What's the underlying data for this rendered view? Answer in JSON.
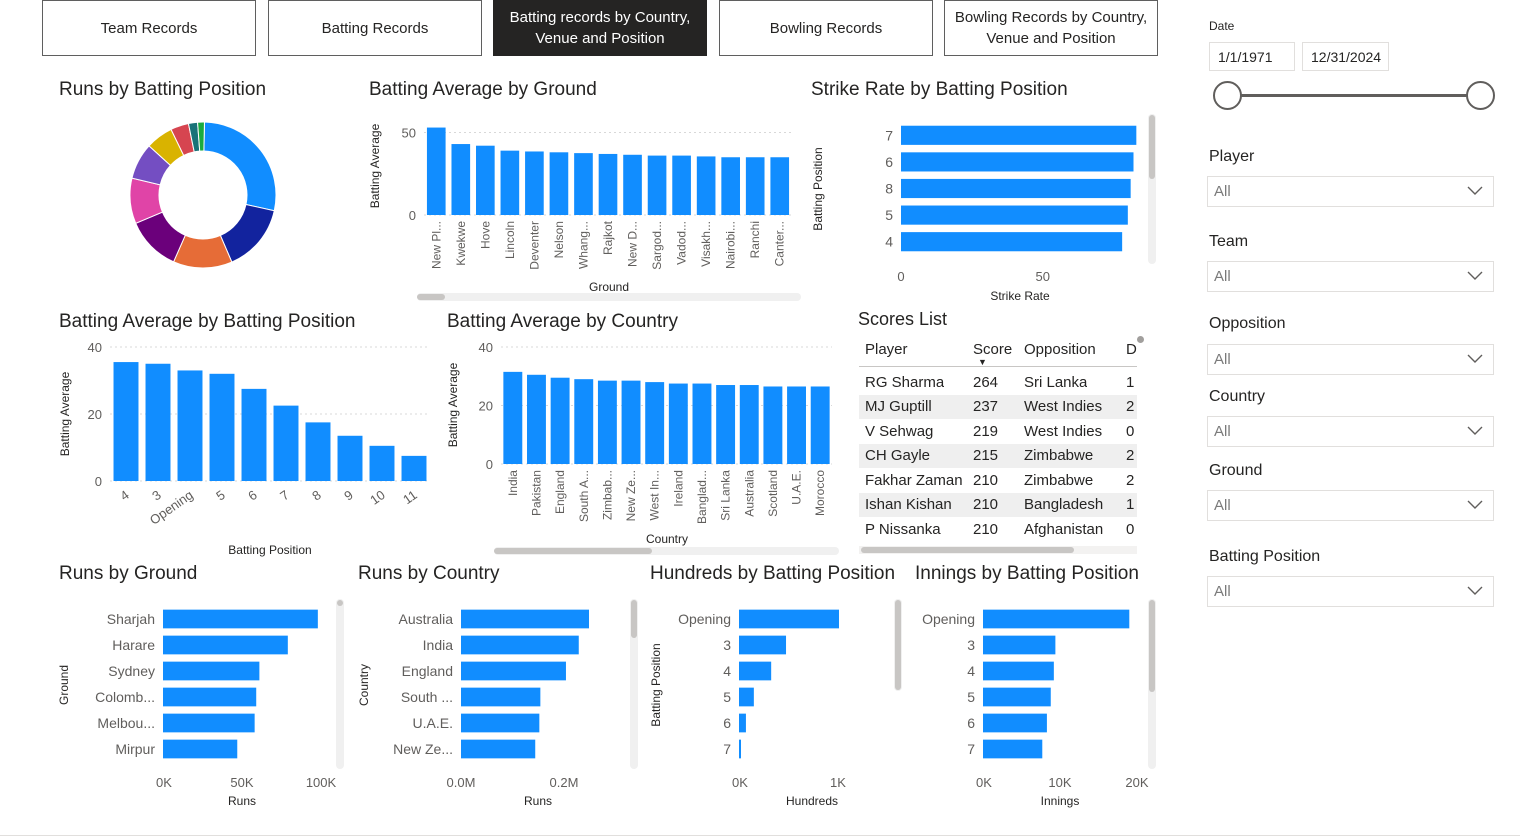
{
  "nav": [
    {
      "label": "Team Records",
      "active": false
    },
    {
      "label": "Batting Records",
      "active": false
    },
    {
      "label": "Batting records by Country, Venue and Position",
      "active": true
    },
    {
      "label": "Bowling Records",
      "active": false
    },
    {
      "label": "Bowling Records by Country, Venue and Position",
      "active": false
    }
  ],
  "filters": {
    "date_label": "Date",
    "date_start": "1/1/1971",
    "date_end": "12/31/2024",
    "slicers": [
      {
        "label": "Player",
        "value": "All"
      },
      {
        "label": "Team",
        "value": "All"
      },
      {
        "label": "Opposition",
        "value": "All"
      },
      {
        "label": "Country",
        "value": "All"
      },
      {
        "label": "Ground",
        "value": "All"
      },
      {
        "label": "Batting Position",
        "value": "All"
      }
    ]
  },
  "scores_list": {
    "title": "Scores List",
    "headers": [
      "Player",
      "Score",
      "Opposition",
      "D"
    ],
    "rows": [
      [
        "RG Sharma",
        "264",
        "Sri Lanka",
        "1"
      ],
      [
        "MJ Guptill",
        "237",
        "West Indies",
        "2"
      ],
      [
        "V Sehwag",
        "219",
        "West Indies",
        "0"
      ],
      [
        "CH Gayle",
        "215",
        "Zimbabwe",
        "2"
      ],
      [
        "Fakhar Zaman",
        "210",
        "Zimbabwe",
        "2"
      ],
      [
        "Ishan Kishan",
        "210",
        "Bangladesh",
        "1"
      ],
      [
        "P Nissanka",
        "210",
        "Afghanistan",
        "0"
      ]
    ]
  },
  "chart_data": [
    {
      "id": "runs-by-position",
      "type": "pie",
      "title": "Runs by Batting Position",
      "slices": [
        {
          "value": 28,
          "color": "#118DFF"
        },
        {
          "value": 15,
          "color": "#12239E"
        },
        {
          "value": 13,
          "color": "#E66C37"
        },
        {
          "value": 12,
          "color": "#6B007B"
        },
        {
          "value": 10,
          "color": "#E044A7"
        },
        {
          "value": 8,
          "color": "#744EC2"
        },
        {
          "value": 6,
          "color": "#D9B300"
        },
        {
          "value": 4,
          "color": "#D64550"
        },
        {
          "value": 2,
          "color": "#197278"
        },
        {
          "value": 1.5,
          "color": "#1AAB40"
        }
      ]
    },
    {
      "id": "avg-by-ground",
      "type": "bar",
      "title": "Batting Average by Ground",
      "xlabel": "Ground",
      "ylabel": "Batting Average",
      "ylim": [
        0,
        60
      ],
      "yticks": [
        0,
        50
      ],
      "categories": [
        "New Pl...",
        "Kwekwe",
        "Hove",
        "Lincoln",
        "Deventer",
        "Nelson",
        "Whang...",
        "Rajkot",
        "New D...",
        "Sargod...",
        "Vadod...",
        "Visakh...",
        "Nairobi...",
        "Ranchi",
        "Canter..."
      ],
      "values": [
        53,
        43,
        42,
        39,
        38.5,
        38,
        37.5,
        37,
        36.5,
        36,
        36,
        35.5,
        35,
        35,
        35
      ]
    },
    {
      "id": "sr-by-position",
      "type": "bar",
      "orientation": "horizontal",
      "title": "Strike Rate by Batting Position",
      "xlabel": "Strike Rate",
      "ylabel": "Batting Position",
      "xlim": [
        0,
        85
      ],
      "xticks": [
        0,
        50
      ],
      "categories": [
        "7",
        "6",
        "8",
        "5",
        "4"
      ],
      "values": [
        83,
        82,
        81,
        80,
        78
      ]
    },
    {
      "id": "avg-by-position",
      "type": "bar",
      "title": "Batting Average by Batting Position",
      "xlabel": "Batting Position",
      "ylabel": "Batting Average",
      "ylim": [
        0,
        40
      ],
      "yticks": [
        0,
        20,
        40
      ],
      "categories": [
        "4",
        "3",
        "Opening",
        "5",
        "6",
        "7",
        "8",
        "9",
        "10",
        "11"
      ],
      "values": [
        35.5,
        35,
        33,
        32,
        27.5,
        22.5,
        17.5,
        13.5,
        10.5,
        7.5
      ]
    },
    {
      "id": "avg-by-country",
      "type": "bar",
      "title": "Batting Average by Country",
      "xlabel": "Country",
      "ylabel": "Batting Average",
      "ylim": [
        0,
        40
      ],
      "yticks": [
        0,
        20,
        40
      ],
      "categories": [
        "India",
        "Pakistan",
        "England",
        "South A...",
        "Zimbab...",
        "New Ze...",
        "West In...",
        "Ireland",
        "Banglad...",
        "Sri Lanka",
        "Australia",
        "Scotland",
        "U.A.E.",
        "Morocco"
      ],
      "values": [
        31.5,
        30.5,
        29.5,
        29,
        28.5,
        28.5,
        28,
        27.5,
        27.5,
        27,
        27,
        26.5,
        26.5,
        26.5
      ]
    },
    {
      "id": "runs-by-ground",
      "type": "bar",
      "orientation": "horizontal",
      "title": "Runs by Ground",
      "xlabel": "Runs",
      "ylabel": "Ground",
      "xlim": [
        0,
        100000
      ],
      "xtick_labels": [
        "0K",
        "50K",
        "100K"
      ],
      "categories": [
        "Sharjah",
        "Harare",
        "Sydney",
        "Colomb...",
        "Melbou...",
        "Mirpur"
      ],
      "values": [
        98000,
        79000,
        61000,
        59000,
        58000,
        47000
      ]
    },
    {
      "id": "runs-by-country",
      "type": "bar",
      "orientation": "horizontal",
      "title": "Runs by Country",
      "xlabel": "Runs",
      "ylabel": "Country",
      "xlim": [
        0,
        250000
      ],
      "xtick_labels": [
        "0.0M",
        "0.2M"
      ],
      "categories": [
        "Australia",
        "India",
        "England",
        "South ...",
        "U.A.E.",
        "New Ze..."
      ],
      "values": [
        250000,
        230000,
        205000,
        155000,
        153000,
        145000
      ]
    },
    {
      "id": "hundreds-by-position",
      "type": "bar",
      "orientation": "horizontal",
      "title": "Hundreds by Batting Position",
      "xlabel": "Hundreds",
      "ylabel": "Batting Position",
      "xlim": [
        0,
        1000
      ],
      "xtick_labels": [
        "0K",
        "1K"
      ],
      "categories": [
        "Opening",
        "3",
        "4",
        "5",
        "6",
        "7"
      ],
      "values": [
        1010,
        475,
        325,
        150,
        70,
        20
      ]
    },
    {
      "id": "innings-by-position",
      "type": "bar",
      "orientation": "horizontal",
      "title": "Innings by Batting Position",
      "xlabel": "Innings",
      "ylabel": "",
      "xlim": [
        0,
        20000
      ],
      "xtick_labels": [
        "0K",
        "10K",
        "20K"
      ],
      "categories": [
        "Opening",
        "3",
        "4",
        "5",
        "6",
        "7"
      ],
      "values": [
        19000,
        9400,
        9200,
        8800,
        8300,
        7700
      ]
    }
  ]
}
